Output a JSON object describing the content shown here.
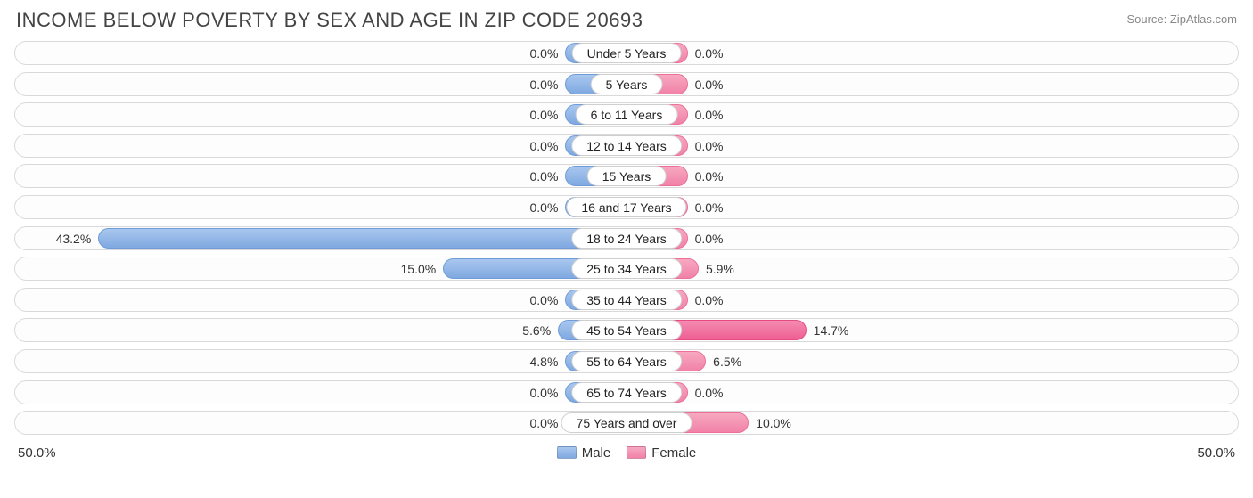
{
  "title": "INCOME BELOW POVERTY BY SEX AND AGE IN ZIP CODE 20693",
  "source": "Source: ZipAtlas.com",
  "axis_max": 50.0,
  "axis_left_label": "50.0%",
  "axis_right_label": "50.0%",
  "min_bar_pct": 10.0,
  "legend": {
    "male": "Male",
    "female": "Female"
  },
  "colors": {
    "male_top": "#a9c7ef",
    "male_bot": "#7fa9e0",
    "male_border": "#6f9cd8",
    "female_top": "#f7a9c1",
    "female_bot": "#f181a8",
    "female_border": "#eb6f99",
    "female_emph_top": "#f48bb1",
    "female_emph_bot": "#ee5f92",
    "track_border": "#d9d9d9",
    "text": "#333333",
    "title": "#444444",
    "src": "#888888"
  },
  "rows": [
    {
      "label": "Under 5 Years",
      "male": 0.0,
      "female": 0.0,
      "male_txt": "0.0%",
      "female_txt": "0.0%"
    },
    {
      "label": "5 Years",
      "male": 0.0,
      "female": 0.0,
      "male_txt": "0.0%",
      "female_txt": "0.0%"
    },
    {
      "label": "6 to 11 Years",
      "male": 0.0,
      "female": 0.0,
      "male_txt": "0.0%",
      "female_txt": "0.0%"
    },
    {
      "label": "12 to 14 Years",
      "male": 0.0,
      "female": 0.0,
      "male_txt": "0.0%",
      "female_txt": "0.0%"
    },
    {
      "label": "15 Years",
      "male": 0.0,
      "female": 0.0,
      "male_txt": "0.0%",
      "female_txt": "0.0%"
    },
    {
      "label": "16 and 17 Years",
      "male": 0.0,
      "female": 0.0,
      "male_txt": "0.0%",
      "female_txt": "0.0%"
    },
    {
      "label": "18 to 24 Years",
      "male": 43.2,
      "female": 0.0,
      "male_txt": "43.2%",
      "female_txt": "0.0%"
    },
    {
      "label": "25 to 34 Years",
      "male": 15.0,
      "female": 5.9,
      "male_txt": "15.0%",
      "female_txt": "5.9%"
    },
    {
      "label": "35 to 44 Years",
      "male": 0.0,
      "female": 0.0,
      "male_txt": "0.0%",
      "female_txt": "0.0%"
    },
    {
      "label": "45 to 54 Years",
      "male": 5.6,
      "female": 14.7,
      "male_txt": "5.6%",
      "female_txt": "14.7%",
      "emph": true
    },
    {
      "label": "55 to 64 Years",
      "male": 4.8,
      "female": 6.5,
      "male_txt": "4.8%",
      "female_txt": "6.5%"
    },
    {
      "label": "65 to 74 Years",
      "male": 0.0,
      "female": 0.0,
      "male_txt": "0.0%",
      "female_txt": "0.0%"
    },
    {
      "label": "75 Years and over",
      "male": 0.0,
      "female": 10.0,
      "male_txt": "0.0%",
      "female_txt": "10.0%"
    }
  ]
}
